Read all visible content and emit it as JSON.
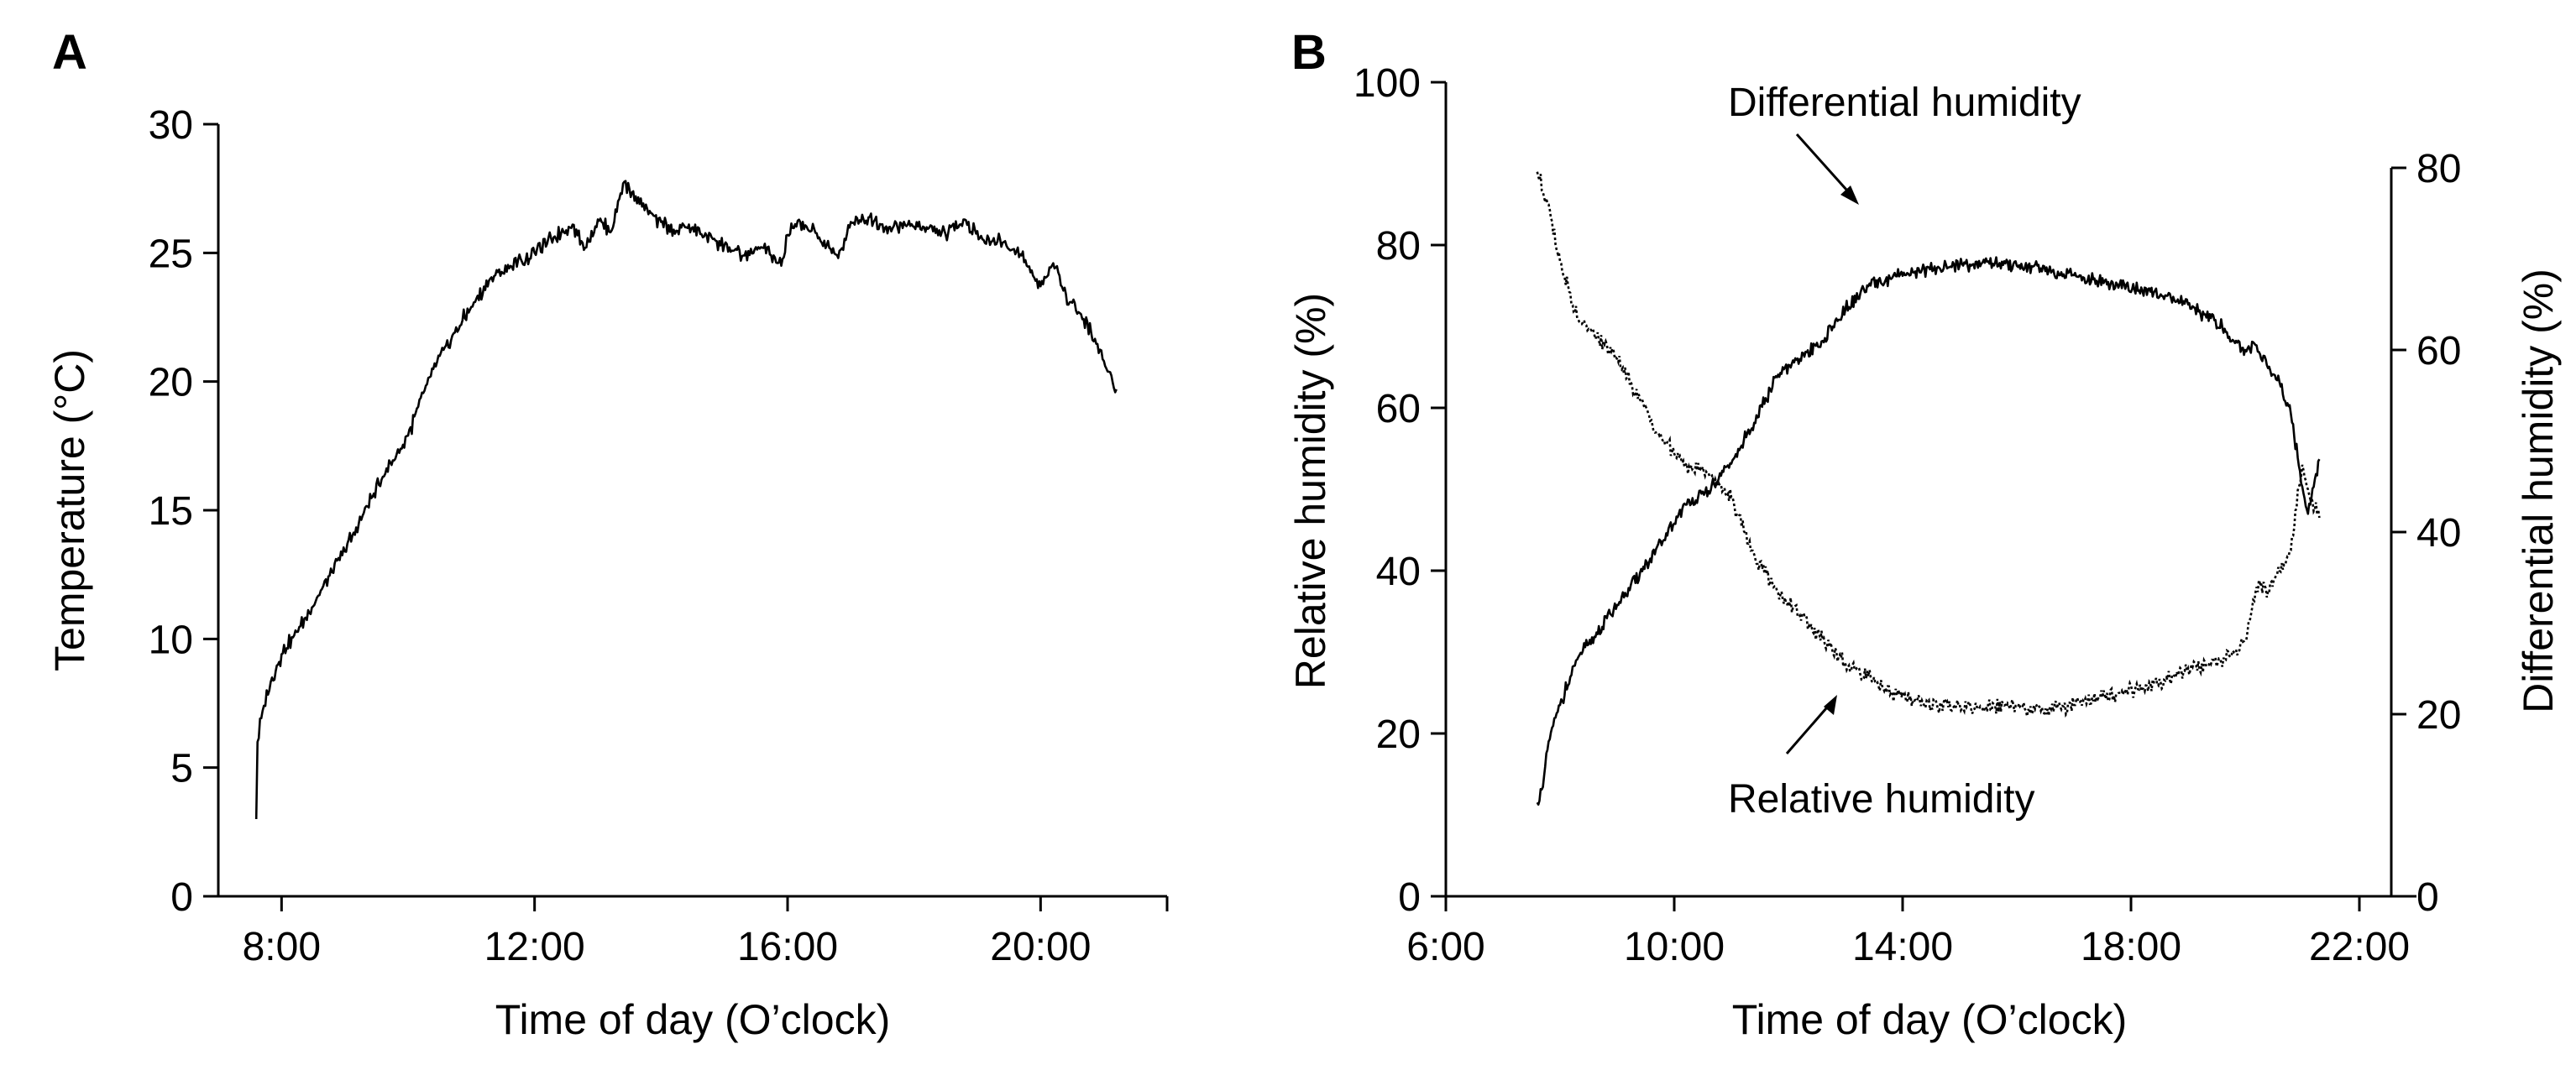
{
  "panels": {
    "a": {
      "letter": "A"
    },
    "b": {
      "letter": "B"
    }
  },
  "chart_data": [
    {
      "type": "line",
      "panel": "A",
      "xlabel": "Time of day (O’clock)",
      "ylabel": "Temperature (°C)",
      "x_range_hours": [
        7.0,
        22.0
      ],
      "ylim": [
        0,
        30
      ],
      "x_ticks": [
        {
          "h": 8,
          "label": "8:00"
        },
        {
          "h": 12,
          "label": "12:00"
        },
        {
          "h": 16,
          "label": "16:00"
        },
        {
          "h": 20,
          "label": "20:00"
        }
      ],
      "y_ticks": [
        0,
        5,
        10,
        15,
        20,
        25,
        30
      ],
      "series": [
        {
          "style": "solid",
          "x_hours": [
            7.6,
            7.62,
            7.7,
            7.85,
            8.0,
            8.3,
            8.6,
            9.0,
            9.3,
            9.6,
            10.0,
            10.3,
            10.6,
            11.0,
            11.3,
            11.6,
            12.0,
            12.3,
            12.6,
            12.8,
            13.0,
            13.2,
            13.4,
            13.6,
            13.8,
            14.0,
            14.2,
            14.5,
            14.8,
            15.0,
            15.3,
            15.6,
            15.9,
            16.0,
            16.2,
            16.5,
            16.8,
            17.0,
            17.3,
            17.6,
            17.9,
            18.2,
            18.5,
            18.8,
            19.1,
            19.4,
            19.7,
            20.0,
            20.2,
            20.4,
            20.6,
            20.8,
            21.0,
            21.2
          ],
          "values": [
            3.0,
            6.0,
            7.2,
            8.5,
            9.4,
            10.5,
            11.7,
            13.4,
            14.9,
            16.3,
            17.9,
            19.9,
            21.4,
            22.9,
            24.0,
            24.4,
            25.0,
            25.6,
            26.1,
            25.2,
            26.3,
            25.8,
            27.7,
            27.2,
            26.5,
            26.2,
            25.9,
            26.0,
            25.6,
            25.3,
            24.9,
            25.2,
            24.5,
            25.7,
            26.2,
            25.6,
            24.8,
            26.2,
            26.4,
            26.0,
            26.1,
            26.0,
            25.7,
            26.3,
            25.5,
            25.4,
            24.9,
            23.7,
            24.6,
            23.4,
            22.7,
            21.9,
            20.8,
            19.7
          ]
        }
      ]
    },
    {
      "type": "line",
      "panel": "B",
      "xlabel": "Time of day (O’clock)",
      "ylabel": "Relative humidity (%)",
      "y2label": "Differential humidity (%)",
      "x_range_hours": [
        6.0,
        23.0
      ],
      "ylim": [
        0,
        100
      ],
      "y2lim": [
        0,
        80
      ],
      "x_ticks": [
        {
          "h": 6,
          "label": "6:00"
        },
        {
          "h": 10,
          "label": "10:00"
        },
        {
          "h": 14,
          "label": "14:00"
        },
        {
          "h": 18,
          "label": "18:00"
        },
        {
          "h": 22,
          "label": "22:00"
        }
      ],
      "y_ticks": [
        0,
        20,
        40,
        60,
        80,
        100
      ],
      "y2_ticks": [
        0,
        20,
        40,
        60,
        80
      ],
      "annotations": [
        {
          "text": "Differential humidity",
          "series": "solid"
        },
        {
          "text": "Relative humidity",
          "series": "dotted"
        }
      ],
      "series": [
        {
          "axis": "right",
          "style": "solid",
          "x_hours": [
            7.6,
            7.7,
            7.8,
            8.0,
            8.3,
            8.6,
            9.0,
            9.4,
            9.8,
            10.2,
            10.6,
            11.0,
            11.4,
            11.8,
            12.2,
            12.6,
            13.0,
            13.4,
            13.8,
            14.2,
            14.6,
            15.0,
            15.4,
            15.8,
            16.2,
            16.6,
            17.0,
            17.4,
            17.8,
            18.2,
            18.6,
            19.0,
            19.4,
            19.6,
            19.8,
            20.0,
            20.2,
            20.4,
            20.6,
            20.8,
            21.0,
            21.1,
            21.3
          ],
          "values": [
            10.3,
            12.0,
            17.0,
            21.0,
            26.0,
            28.5,
            32.0,
            35.5,
            39.0,
            43.0,
            44.5,
            47.5,
            52.0,
            57.0,
            59.0,
            61.0,
            64.5,
            67.0,
            67.8,
            68.5,
            69.0,
            69.3,
            69.6,
            69.5,
            69.3,
            68.5,
            68.2,
            67.6,
            67.2,
            66.5,
            66.0,
            65.0,
            63.5,
            62.5,
            61.0,
            60.0,
            60.5,
            58.0,
            56.5,
            53.0,
            45.0,
            42.0,
            48.0
          ]
        },
        {
          "axis": "left",
          "style": "dotted",
          "x_hours": [
            7.6,
            7.8,
            8.0,
            8.3,
            8.6,
            9.0,
            9.4,
            9.8,
            10.2,
            10.6,
            11.0,
            11.4,
            11.8,
            12.2,
            12.6,
            13.0,
            13.4,
            13.8,
            14.2,
            14.6,
            15.0,
            15.4,
            15.8,
            16.2,
            16.6,
            17.0,
            17.4,
            17.8,
            18.2,
            18.6,
            19.0,
            19.4,
            19.8,
            20.0,
            20.2,
            20.4,
            20.6,
            20.8,
            21.0,
            21.1,
            21.3
          ],
          "values": [
            89.0,
            85.0,
            78.0,
            71.0,
            69.0,
            66.0,
            61.0,
            56.0,
            53.0,
            52.0,
            49.0,
            42.0,
            37.5,
            34.5,
            31.5,
            28.5,
            27.0,
            25.0,
            24.0,
            23.5,
            23.5,
            23.0,
            23.5,
            23.0,
            23.0,
            23.5,
            24.5,
            25.0,
            25.5,
            26.5,
            28.0,
            28.5,
            30.0,
            31.5,
            38.0,
            37.5,
            40.0,
            42.5,
            53.0,
            50.0,
            46.5
          ]
        }
      ]
    }
  ]
}
